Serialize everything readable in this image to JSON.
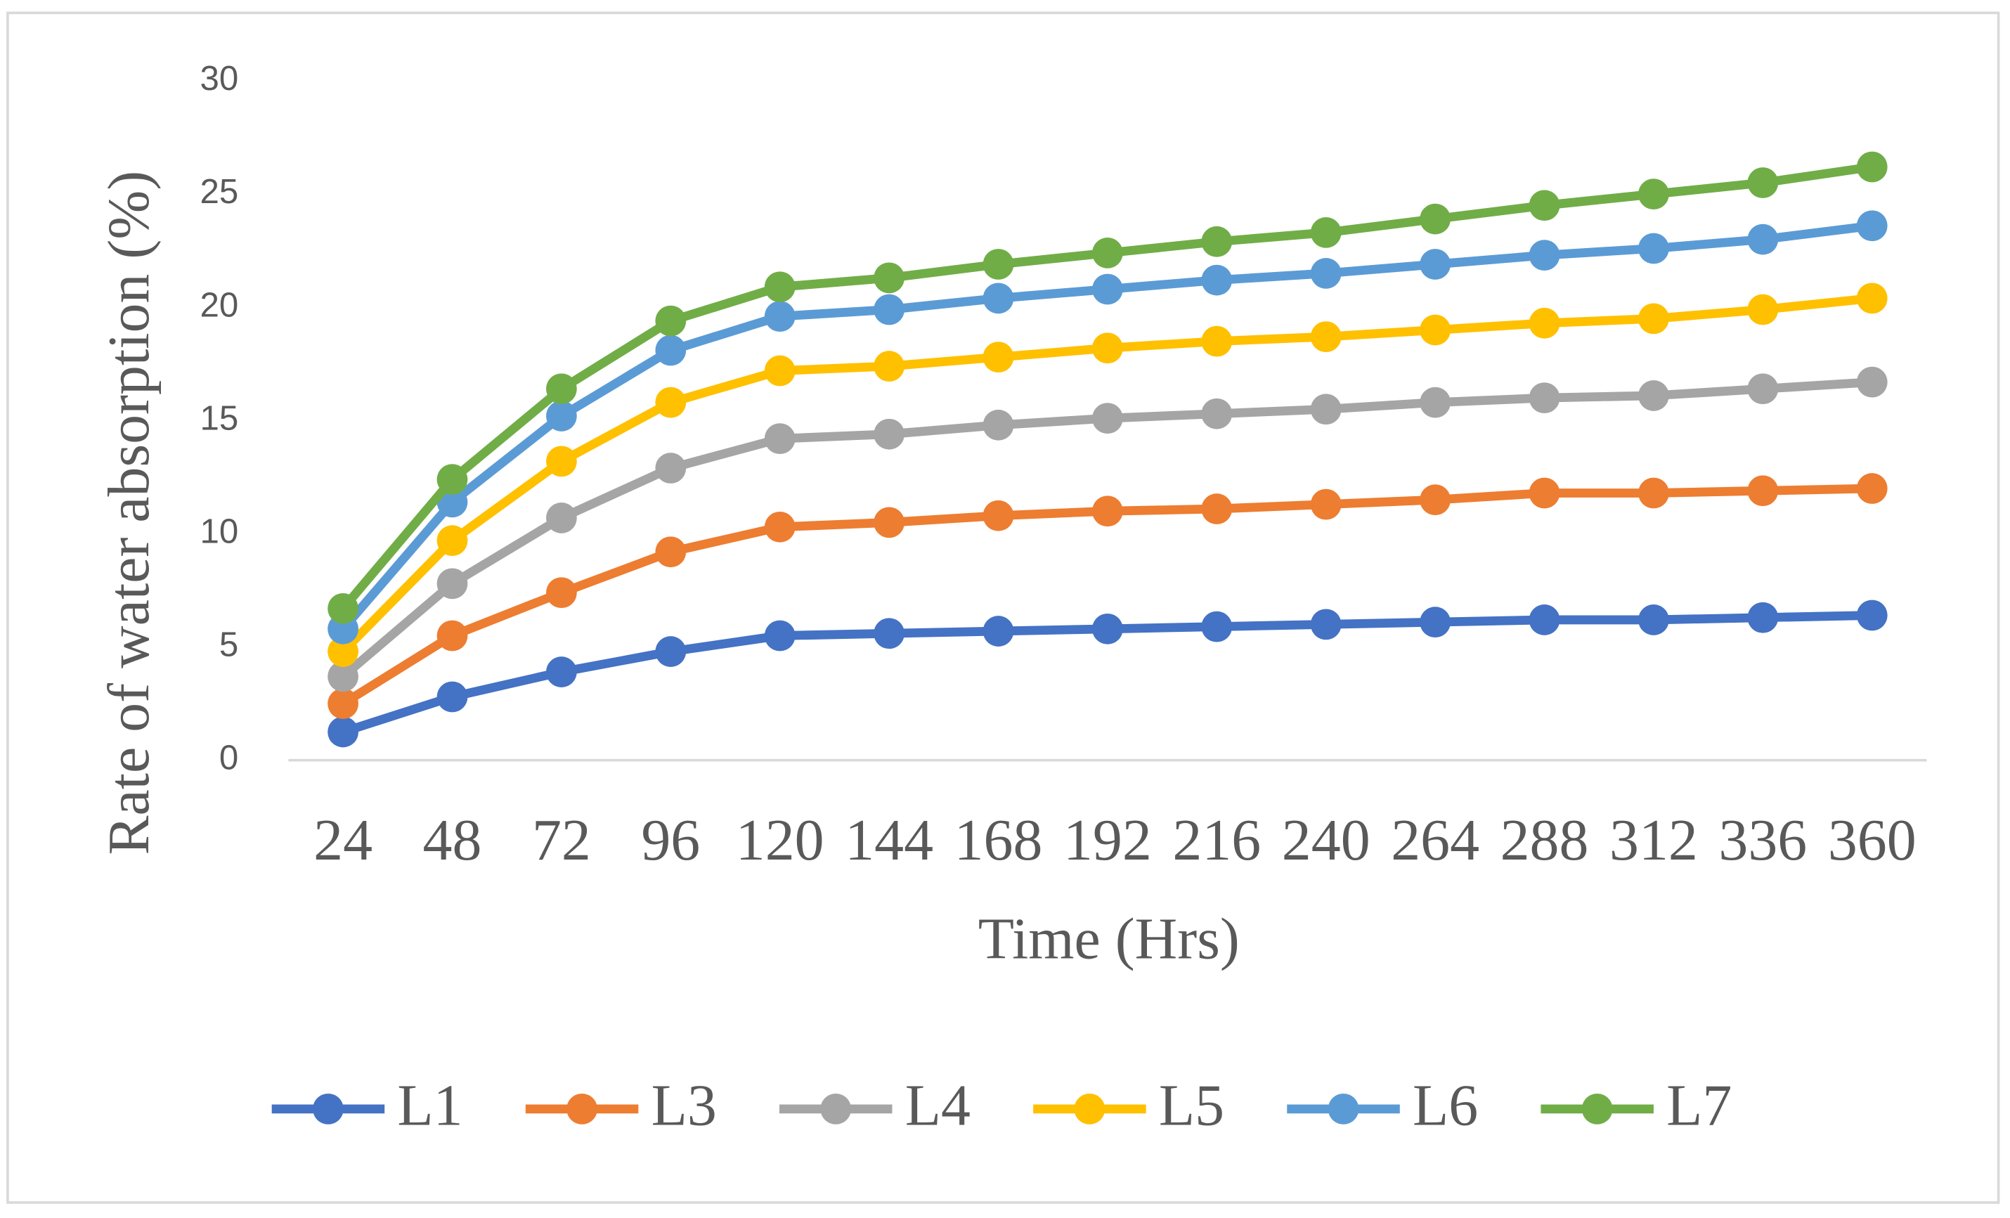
{
  "chart_data": {
    "type": "line",
    "x_label": "Time (Hrs)",
    "y_label": "Rate of water absorption (%)",
    "categories": [
      24,
      48,
      72,
      96,
      120,
      144,
      168,
      192,
      216,
      240,
      264,
      288,
      312,
      336,
      360
    ],
    "ylim": [
      0,
      30
    ],
    "yticks": [
      0,
      5,
      10,
      15,
      20,
      25,
      30
    ],
    "legend": "bottom",
    "series": [
      {
        "name": "L1",
        "color": "#4472c4",
        "values": [
          1.25,
          2.8,
          3.9,
          4.8,
          5.5,
          5.6,
          5.7,
          5.8,
          5.9,
          6.0,
          6.1,
          6.2,
          6.2,
          6.3,
          6.4
        ]
      },
      {
        "name": "L3",
        "color": "#ed7d31",
        "values": [
          2.5,
          5.5,
          7.4,
          9.2,
          10.3,
          10.5,
          10.8,
          11.0,
          11.1,
          11.3,
          11.5,
          11.8,
          11.8,
          11.9,
          12.0
        ]
      },
      {
        "name": "L4",
        "color": "#a5a5a5",
        "values": [
          3.7,
          7.8,
          10.7,
          12.9,
          14.2,
          14.4,
          14.8,
          15.1,
          15.3,
          15.5,
          15.8,
          16.0,
          16.1,
          16.4,
          16.7
        ]
      },
      {
        "name": "L5",
        "color": "#ffc000",
        "values": [
          4.8,
          9.7,
          13.2,
          15.8,
          17.2,
          17.4,
          17.8,
          18.2,
          18.5,
          18.7,
          19.0,
          19.3,
          19.5,
          19.9,
          20.4
        ]
      },
      {
        "name": "L6",
        "color": "#5b9bd5",
        "values": [
          5.8,
          11.4,
          15.2,
          18.1,
          19.6,
          19.9,
          20.4,
          20.8,
          21.2,
          21.5,
          21.9,
          22.3,
          22.6,
          23.0,
          23.6
        ]
      },
      {
        "name": "L7",
        "color": "#70ad47",
        "values": [
          6.7,
          12.4,
          16.4,
          19.4,
          20.9,
          21.3,
          21.9,
          22.4,
          22.9,
          23.3,
          23.9,
          24.5,
          25.0,
          25.5,
          26.2
        ]
      }
    ]
  }
}
